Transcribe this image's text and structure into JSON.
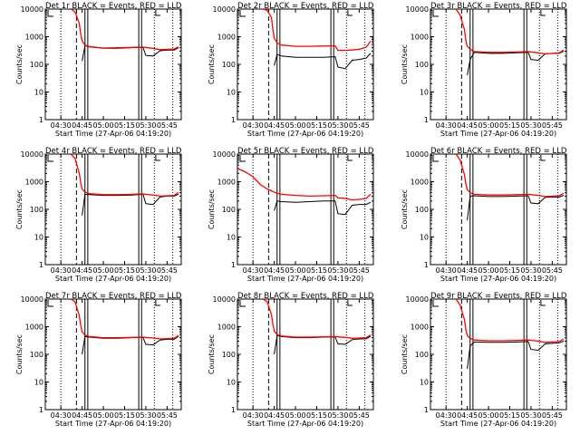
{
  "figure": {
    "colors": {
      "events": "#000000",
      "lld": "#ff0000",
      "axes": "#000000",
      "background": "#ffffff"
    },
    "common": {
      "ylabel": "Counts/sec",
      "xlabel": "Start Time (27-Apr-06 04:19:20)",
      "x_ticks": [
        "04:30",
        "04:45",
        "05:00",
        "05:15",
        "05:30",
        "05:45"
      ],
      "y_ticks": [
        "1",
        "10",
        "100",
        "1000",
        "10000"
      ]
    }
  },
  "chart_data": [
    {
      "type": "line",
      "title": "Det 1r BLACK = Events, RED = LLD",
      "xlabel": "Start Time (27-Apr-06 04:19:20)",
      "ylabel": "Counts/sec",
      "y_scale": "log",
      "ylim": [
        1,
        10000
      ],
      "x_ticks": [
        "04:30",
        "04:45",
        "05:00",
        "05:15",
        "05:30",
        "05:45"
      ],
      "x": [
        "04:37",
        "04:40",
        "04:43",
        "04:44",
        "04:45",
        "04:47",
        "04:50",
        "05:00",
        "05:10",
        "05:20",
        "05:28",
        "05:30",
        "05:35",
        "05:40",
        "05:45",
        "05:50",
        "05:53"
      ],
      "series": [
        {
          "name": "Events",
          "color": "#000000",
          "values": [
            null,
            null,
            null,
            null,
            130,
            480,
            430,
            380,
            380,
            400,
            410,
            210,
            200,
            310,
            330,
            330,
            400
          ]
        },
        {
          "name": "LLD",
          "color": "#ff0000",
          "values": [
            10000,
            8000,
            3000,
            1200,
            700,
            500,
            440,
            390,
            400,
            410,
            420,
            410,
            380,
            340,
            350,
            360,
            430
          ]
        }
      ]
    },
    {
      "type": "line",
      "title": "Det 2r BLACK = Events, RED = LLD",
      "xlabel": "Start Time (27-Apr-06 04:19:20)",
      "ylabel": "Counts/sec",
      "y_scale": "log",
      "ylim": [
        1,
        10000
      ],
      "x_ticks": [
        "04:30",
        "04:45",
        "05:00",
        "05:15",
        "05:30",
        "05:45"
      ],
      "x": [
        "04:37",
        "04:40",
        "04:43",
        "04:44",
        "04:45",
        "04:47",
        "04:50",
        "05:00",
        "05:10",
        "05:20",
        "05:28",
        "05:30",
        "05:35",
        "05:40",
        "05:45",
        "05:50",
        "05:53"
      ],
      "series": [
        {
          "name": "Events",
          "color": "#000000",
          "values": [
            null,
            null,
            null,
            null,
            90,
            230,
            200,
            180,
            180,
            180,
            190,
            80,
            70,
            140,
            150,
            170,
            250
          ]
        },
        {
          "name": "LLD",
          "color": "#ff0000",
          "values": [
            10000,
            9000,
            5000,
            1800,
            900,
            600,
            500,
            450,
            450,
            460,
            470,
            320,
            320,
            330,
            350,
            420,
            700
          ]
        }
      ]
    },
    {
      "type": "line",
      "title": "Det 3r BLACK = Events, RED = LLD",
      "xlabel": "Start Time (27-Apr-06 04:19:20)",
      "ylabel": "Counts/sec",
      "y_scale": "log",
      "ylim": [
        1,
        10000
      ],
      "x_ticks": [
        "04:30",
        "04:45",
        "05:00",
        "05:15",
        "05:30",
        "05:45"
      ],
      "x": [
        "04:37",
        "04:40",
        "04:43",
        "04:44",
        "04:45",
        "04:47",
        "04:50",
        "05:00",
        "05:10",
        "05:20",
        "05:28",
        "05:30",
        "05:35",
        "05:40",
        "05:45",
        "05:50",
        "05:53"
      ],
      "series": [
        {
          "name": "Events",
          "color": "#000000",
          "values": [
            null,
            null,
            null,
            null,
            40,
            150,
            270,
            250,
            250,
            260,
            270,
            150,
            140,
            240,
            250,
            250,
            300
          ]
        },
        {
          "name": "LLD",
          "color": "#ff0000",
          "values": [
            10000,
            6000,
            1800,
            700,
            450,
            350,
            290,
            270,
            270,
            280,
            290,
            280,
            260,
            240,
            250,
            260,
            330
          ]
        }
      ]
    },
    {
      "type": "line",
      "title": "Det 4r BLACK = Events, RED = LLD",
      "xlabel": "Start Time (27-Apr-06 04:19:20)",
      "ylabel": "Counts/sec",
      "y_scale": "log",
      "ylim": [
        1,
        10000
      ],
      "x_ticks": [
        "04:30",
        "04:45",
        "05:00",
        "05:15",
        "05:30",
        "05:45"
      ],
      "x": [
        "04:37",
        "04:40",
        "04:43",
        "04:44",
        "04:45",
        "04:47",
        "04:50",
        "05:00",
        "05:10",
        "05:20",
        "05:28",
        "05:30",
        "05:35",
        "05:40",
        "05:45",
        "05:50",
        "05:53"
      ],
      "series": [
        {
          "name": "Events",
          "color": "#000000",
          "values": [
            null,
            null,
            null,
            null,
            60,
            350,
            340,
            320,
            320,
            330,
            350,
            160,
            150,
            280,
            300,
            300,
            350
          ]
        },
        {
          "name": "LLD",
          "color": "#ff0000",
          "values": [
            10000,
            7000,
            2000,
            900,
            550,
            420,
            370,
            340,
            340,
            350,
            360,
            350,
            330,
            300,
            310,
            320,
            400
          ]
        }
      ]
    },
    {
      "type": "line",
      "title": "Det 5r BLACK = Events, RED = LLD",
      "xlabel": "Start Time (27-Apr-06 04:19:20)",
      "ylabel": "Counts/sec",
      "y_scale": "log",
      "ylim": [
        1,
        10000
      ],
      "x_ticks": [
        "04:30",
        "04:45",
        "05:00",
        "05:15",
        "05:30",
        "05:45"
      ],
      "x": [
        "04:19",
        "04:25",
        "04:30",
        "04:35",
        "04:40",
        "04:45",
        "04:47",
        "04:50",
        "05:00",
        "05:10",
        "05:20",
        "05:28",
        "05:30",
        "05:35",
        "05:40",
        "05:45",
        "05:50",
        "05:53"
      ],
      "series": [
        {
          "name": "Events",
          "color": "#000000",
          "values": [
            null,
            null,
            null,
            null,
            null,
            90,
            200,
            190,
            180,
            190,
            200,
            200,
            70,
            65,
            140,
            150,
            150,
            180
          ]
        },
        {
          "name": "LLD",
          "color": "#ff0000",
          "values": [
            3000,
            2200,
            1500,
            800,
            550,
            420,
            380,
            350,
            320,
            300,
            310,
            320,
            260,
            250,
            220,
            230,
            250,
            350
          ]
        }
      ]
    },
    {
      "type": "line",
      "title": "Det 6r BLACK = Events, RED = LLD",
      "xlabel": "Start Time (27-Apr-06 04:19:20)",
      "ylabel": "Counts/sec",
      "y_scale": "log",
      "ylim": [
        1,
        10000
      ],
      "x_ticks": [
        "04:30",
        "04:45",
        "05:00",
        "05:15",
        "05:30",
        "05:45"
      ],
      "x": [
        "04:37",
        "04:40",
        "04:43",
        "04:44",
        "04:45",
        "04:47",
        "04:50",
        "05:00",
        "05:10",
        "05:20",
        "05:28",
        "05:30",
        "05:35",
        "05:40",
        "05:45",
        "05:50",
        "05:53"
      ],
      "series": [
        {
          "name": "Events",
          "color": "#000000",
          "values": [
            null,
            null,
            null,
            null,
            40,
            300,
            310,
            290,
            290,
            300,
            310,
            170,
            160,
            270,
            280,
            280,
            320
          ]
        },
        {
          "name": "LLD",
          "color": "#ff0000",
          "values": [
            10000,
            6000,
            1800,
            800,
            520,
            400,
            350,
            330,
            330,
            340,
            350,
            340,
            320,
            290,
            300,
            310,
            380
          ]
        }
      ]
    },
    {
      "type": "line",
      "title": "Det 7r BLACK = Events, RED = LLD",
      "xlabel": "Start Time (27-Apr-06 04:19:20)",
      "ylabel": "Counts/sec",
      "y_scale": "log",
      "ylim": [
        1,
        10000
      ],
      "x_ticks": [
        "04:30",
        "04:45",
        "05:00",
        "05:15",
        "05:30",
        "05:45"
      ],
      "x": [
        "04:37",
        "04:40",
        "04:43",
        "04:44",
        "04:45",
        "04:47",
        "04:50",
        "05:00",
        "05:10",
        "05:20",
        "05:28",
        "05:30",
        "05:35",
        "05:40",
        "05:45",
        "05:50",
        "05:53"
      ],
      "series": [
        {
          "name": "Events",
          "color": "#000000",
          "values": [
            null,
            null,
            null,
            null,
            100,
            450,
            420,
            380,
            380,
            400,
            410,
            230,
            220,
            330,
            350,
            350,
            450
          ]
        },
        {
          "name": "LLD",
          "color": "#ff0000",
          "values": [
            10000,
            8000,
            2500,
            1100,
            650,
            500,
            440,
            400,
            400,
            410,
            420,
            410,
            390,
            360,
            370,
            380,
            480
          ]
        }
      ]
    },
    {
      "type": "line",
      "title": "Det 8r BLACK = Events, RED = LLD",
      "xlabel": "Start Time (27-Apr-06 04:19:20)",
      "ylabel": "Counts/sec",
      "y_scale": "log",
      "ylim": [
        1,
        10000
      ],
      "x_ticks": [
        "04:30",
        "04:45",
        "05:00",
        "05:15",
        "05:30",
        "05:45"
      ],
      "x": [
        "04:37",
        "04:40",
        "04:43",
        "04:44",
        "04:45",
        "04:47",
        "04:50",
        "05:00",
        "05:10",
        "05:20",
        "05:28",
        "05:30",
        "05:35",
        "05:40",
        "05:45",
        "05:50",
        "05:53"
      ],
      "series": [
        {
          "name": "Events",
          "color": "#000000",
          "values": [
            null,
            null,
            null,
            null,
            100,
            480,
            440,
            400,
            400,
            420,
            430,
            240,
            230,
            340,
            360,
            370,
            450
          ]
        },
        {
          "name": "LLD",
          "color": "#ff0000",
          "values": [
            10000,
            8000,
            2800,
            1200,
            700,
            520,
            460,
            420,
            420,
            430,
            440,
            430,
            410,
            380,
            390,
            400,
            500
          ]
        }
      ]
    },
    {
      "type": "line",
      "title": "Det 9r BLACK = Events, RED = LLD",
      "xlabel": "Start Time (27-Apr-06 04:19:20)",
      "ylabel": "Counts/sec",
      "y_scale": "log",
      "ylim": [
        1,
        10000
      ],
      "x_ticks": [
        "04:30",
        "04:45",
        "05:00",
        "05:15",
        "05:30",
        "05:45"
      ],
      "x": [
        "04:37",
        "04:40",
        "04:43",
        "04:44",
        "04:45",
        "04:47",
        "04:50",
        "05:00",
        "05:10",
        "05:20",
        "05:28",
        "05:30",
        "05:35",
        "05:40",
        "05:45",
        "05:50",
        "05:53"
      ],
      "series": [
        {
          "name": "Events",
          "color": "#000000",
          "values": [
            null,
            null,
            null,
            null,
            30,
            200,
            280,
            270,
            270,
            280,
            290,
            150,
            140,
            240,
            250,
            260,
            300
          ]
        },
        {
          "name": "LLD",
          "color": "#ff0000",
          "values": [
            10000,
            6000,
            1800,
            750,
            480,
            380,
            330,
            310,
            310,
            320,
            330,
            320,
            300,
            270,
            280,
            290,
            360
          ]
        }
      ]
    }
  ]
}
